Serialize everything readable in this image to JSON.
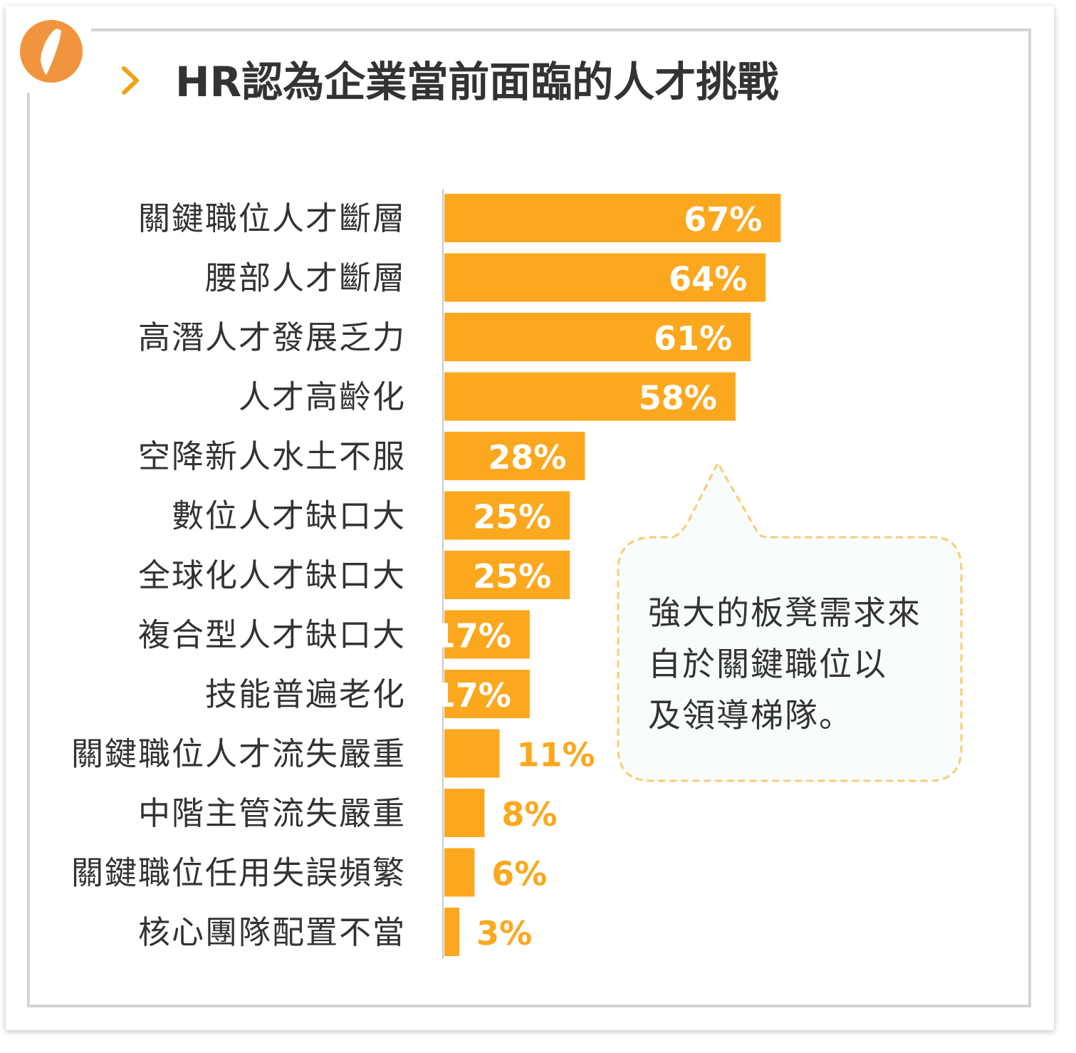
{
  "header": {
    "title": "HR認為企業當前面臨的人才挑戰",
    "badge_icon": "taiwan-map-icon",
    "chevron_icon": "chevron-right-icon"
  },
  "colors": {
    "bar": "#fba81f",
    "badge": "#f0953d",
    "value_outside": "#fba81f",
    "value_inside": "#ffffff",
    "callout_border": "#f8cd72",
    "callout_fill": "#f8fcfc"
  },
  "callout": {
    "lines": [
      "強大的板凳需求來",
      "自於關鍵職位以",
      "及領導梯隊。"
    ]
  },
  "chart_data": {
    "type": "bar",
    "orientation": "horizontal",
    "categories": [
      "關鍵職位人才斷層",
      "腰部人才斷層",
      "高潛人才發展乏力",
      "人才高齡化",
      "空降新人水土不服",
      "數位人才缺口大",
      "全球化人才缺口大",
      "複合型人才缺口大",
      "技能普遍老化",
      "關鍵職位人才流失嚴重",
      "中階主管流失嚴重",
      "關鍵職位任用失誤頻繁",
      "核心團隊配置不當"
    ],
    "values": [
      67,
      64,
      61,
      58,
      28,
      25,
      25,
      17,
      17,
      11,
      8,
      6,
      3
    ],
    "value_labels": [
      "67%",
      "64%",
      "61%",
      "58%",
      "28%",
      "25%",
      "25%",
      "17%",
      "17%",
      "11%",
      "8%",
      "6%",
      "3%"
    ],
    "unit": "%",
    "xlim": [
      0,
      100
    ],
    "grid": false,
    "legend": "none"
  }
}
